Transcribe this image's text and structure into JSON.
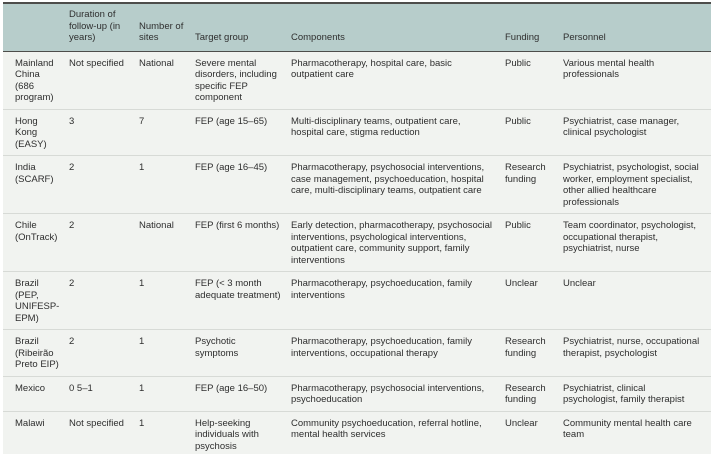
{
  "colors": {
    "header_bg": "#b7cdcb",
    "body_bg": "#f1f3f0",
    "rule_dark": "#4d4d4b",
    "rule_light": "#d7dad6",
    "rule_bottom": "#8b908e",
    "text": "#2e2e2e"
  },
  "table": {
    "headers": {
      "program": "",
      "duration": "Duration of follow-up (in years)",
      "sites": "Number of sites",
      "target": "Target group",
      "components": "Components",
      "funding": "Funding",
      "personnel": "Personnel"
    },
    "rows": [
      {
        "program": "Mainland China (686 program)",
        "duration": "Not specified",
        "sites": "National",
        "target": "Severe mental disorders, including specific FEP component",
        "components": "Pharmacotherapy, hospital care, basic outpatient care",
        "funding": "Public",
        "personnel": "Various mental health professionals"
      },
      {
        "program": "Hong Kong (EASY)",
        "duration": "3",
        "sites": "7",
        "target": "FEP (age 15–65)",
        "components": "Multi-disciplinary teams, outpatient care, hospital care, stigma reduction",
        "funding": "Public",
        "personnel": "Psychiatrist, case manager, clinical psychologist"
      },
      {
        "program": "India (SCARF)",
        "duration": "2",
        "sites": "1",
        "target": "FEP (age 16–45)",
        "components": "Pharmacotherapy, psychosocial interventions, case management, psychoeducation, hospital care, multi-disciplinary teams, outpatient care",
        "funding": "Research funding",
        "personnel": "Psychiatrist, psychologist, social worker, employment specialist, other allied healthcare professionals"
      },
      {
        "program": "Chile (OnTrack)",
        "duration": "2",
        "sites": "National",
        "target": "FEP (first 6 months)",
        "components": "Early detection, pharmacotherapy, psychosocial interventions, psychological interventions, outpatient care, community support, family interventions",
        "funding": "Public",
        "personnel": "Team coordinator, psychologist, occupational therapist, psychiatrist, nurse"
      },
      {
        "program": "Brazil (PEP, UNIFESP-EPM)",
        "duration": "2",
        "sites": "1",
        "target": "FEP (< 3 month adequate treatment)",
        "components": "Pharmacotherapy, psychoeducation, family interventions",
        "funding": "Unclear",
        "personnel": "Unclear"
      },
      {
        "program": "Brazil (Ribeirão Preto EIP)",
        "duration": "2",
        "sites": "1",
        "target": "Psychotic symptoms",
        "components": "Pharmacotherapy, psychoeducation, family interventions, occupational therapy",
        "funding": "Research funding",
        "personnel": "Psychiatrist, nurse, occupational therapist, psychologist"
      },
      {
        "program": "Mexico",
        "duration": "0 5–1",
        "sites": "1",
        "target": "FEP (age 16–50)",
        "components": "Pharmacotherapy, psychosocial interventions, psychoeducation",
        "funding": "Research funding",
        "personnel": "Psychiatrist, clinical psychologist, family therapist"
      },
      {
        "program": "Malawi",
        "duration": "Not specified",
        "sites": "1",
        "target": "Help-seeking individuals with psychosis",
        "components": "Community psychoeducation, referral hotline, mental health services",
        "funding": "Unclear",
        "personnel": "Community mental health care team"
      }
    ]
  }
}
